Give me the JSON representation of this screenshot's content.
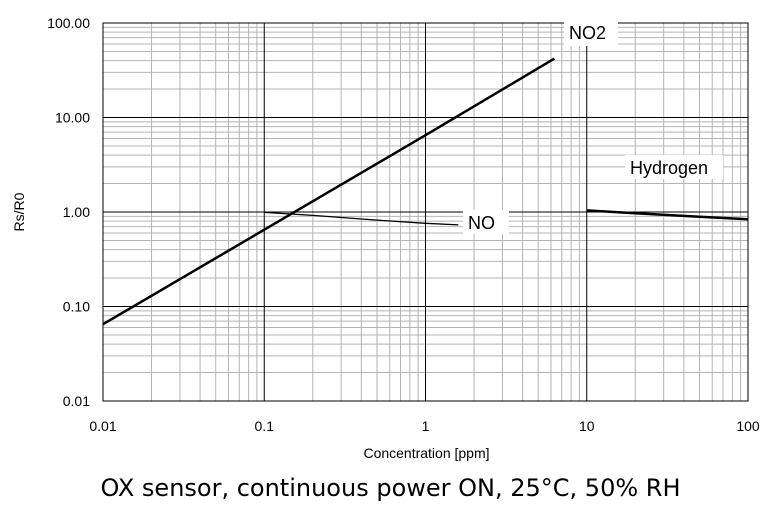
{
  "caption": "OX sensor, continuous power ON, 25°C, 50% RH",
  "chart_data": {
    "type": "line",
    "title": "",
    "xlabel": "Concentration [ppm]",
    "ylabel": "Rs/R0",
    "xscale": "log",
    "yscale": "log",
    "xlim": [
      0.01,
      100
    ],
    "ylim": [
      0.01,
      100
    ],
    "xticks": [
      0.01,
      0.1,
      1,
      10,
      100
    ],
    "xtick_labels": [
      "0.01",
      "0.1",
      "1",
      "10",
      "100"
    ],
    "yticks": [
      0.01,
      0.1,
      1,
      10,
      100
    ],
    "ytick_labels": [
      "0.01",
      "0.10",
      "1.00",
      "10.00",
      "100.00"
    ],
    "grid": true,
    "series": [
      {
        "name": "NO2",
        "x": [
          0.01,
          0.1,
          1,
          6.3
        ],
        "y": [
          0.065,
          0.65,
          6.5,
          42
        ]
      },
      {
        "name": "NO",
        "x": [
          0.1,
          0.2,
          0.5,
          1,
          1.6
        ],
        "y": [
          0.99,
          0.92,
          0.82,
          0.76,
          0.73
        ]
      },
      {
        "name": "Hydrogen",
        "x": [
          10,
          20,
          50,
          100
        ],
        "y": [
          1.04,
          0.97,
          0.89,
          0.84
        ]
      }
    ],
    "label_colors": {
      "line": "#000000",
      "major_grid": "#000000",
      "minor_grid": "#b4b4b4"
    }
  }
}
